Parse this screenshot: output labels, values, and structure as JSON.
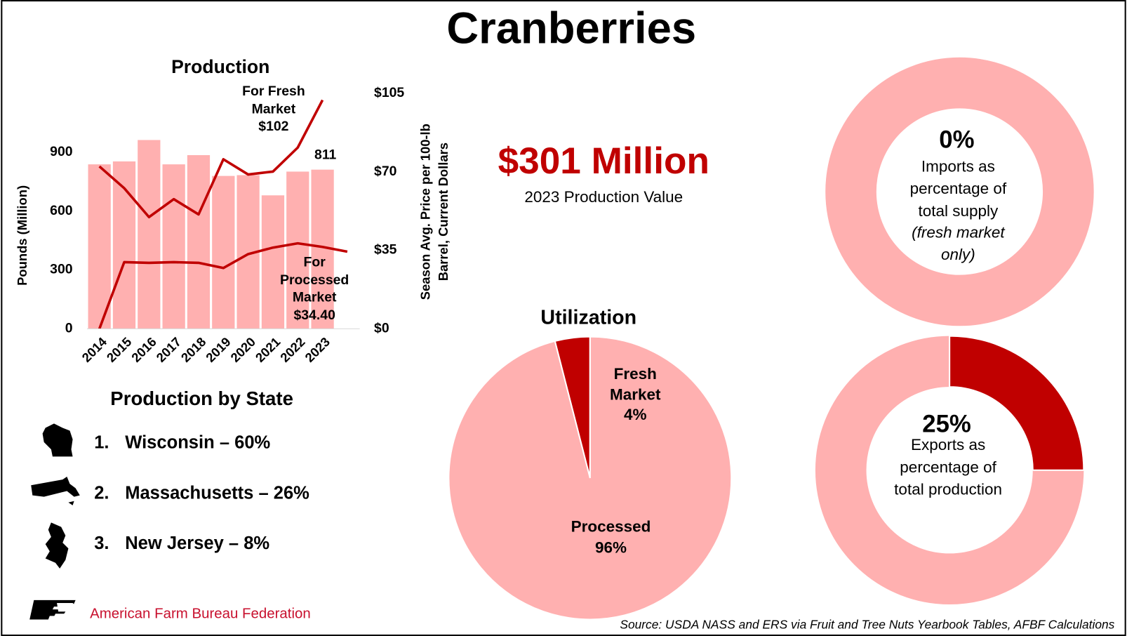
{
  "title": "Cranberries",
  "highlight": {
    "value": "$301 Million",
    "label": "2023 Production Value"
  },
  "states": {
    "title": "Production by State",
    "items": [
      {
        "rank": "1.",
        "text": "Wisconsin – 60%"
      },
      {
        "rank": "2.",
        "text": "Massachusetts – 26%"
      },
      {
        "rank": "3.",
        "text": "New Jersey – 8%"
      }
    ]
  },
  "logo": "American Farm Bureau Federation",
  "source": "Source: USDA NASS and ERS via Fruit and Tree Nuts Yearbook Tables, AFBF Calculations",
  "chart_data": [
    {
      "type": "bar_line",
      "title": "Production",
      "categories": [
        "2014",
        "2015",
        "2016",
        "2017",
        "2018",
        "2019",
        "2020",
        "2021",
        "2022",
        "2023",
        null
      ],
      "ylabel": "Pounds (Million)",
      "y2label": [
        "Season Avg. Price per 100-lb",
        "Barrel, Current Dollars"
      ],
      "ylim": [
        0,
        1200
      ],
      "yticks": [
        0,
        300,
        600,
        900
      ],
      "y2lim": [
        0,
        105
      ],
      "y2ticks": [
        {
          "value": 0,
          "label": "$0"
        },
        {
          "value": 35,
          "label": "$35"
        },
        {
          "value": 70,
          "label": "$70"
        },
        {
          "value": 105,
          "label": "$105"
        }
      ],
      "series": [
        {
          "type": "bar",
          "color": "#ffb0b0",
          "values": [
            838,
            853,
            962,
            838,
            885,
            779,
            783,
            680,
            801,
            811,
            null
          ],
          "value_labels": [
            null,
            null,
            null,
            null,
            null,
            null,
            null,
            null,
            null,
            "811",
            null
          ]
        },
        {
          "type": "line",
          "name": "For Fresh Market",
          "axis": "y2",
          "color": "#c00000",
          "values": [
            72.4,
            62.7,
            49.8,
            57.8,
            51,
            75.6,
            68.8,
            70.1,
            80.8,
            102,
            null
          ],
          "value_labels": [
            null,
            null,
            null,
            null,
            null,
            null,
            null,
            null,
            null,
            "$102",
            null
          ]
        },
        {
          "type": "line",
          "name": "For Processed Market",
          "axis": "y2",
          "color": "#c00000",
          "values": [
            0,
            29.7,
            29.4,
            29.7,
            29.4,
            27.1,
            33.3,
            36.2,
            38.1,
            36.5,
            34.4
          ],
          "value_labels": [
            null,
            null,
            null,
            null,
            null,
            null,
            null,
            null,
            null,
            null,
            "$34.40"
          ]
        }
      ]
    },
    {
      "type": "pie",
      "title": "Utilization",
      "categories": [
        "Fresh Market",
        "Processed"
      ],
      "values": [
        4,
        96
      ],
      "value_labels": [
        "4%",
        "96%"
      ],
      "colors": [
        "#c00000",
        "#ffb0b0"
      ]
    },
    {
      "type": "donut",
      "value": 0,
      "value_label": "0%",
      "label": "Imports as percentage of total supply",
      "note": "(fresh market only)",
      "color": "#c00000",
      "rest_color": "#ffb0b0"
    },
    {
      "type": "donut",
      "value": 25,
      "value_label": "25%",
      "label": "Exports as percentage of total production",
      "color": "#c00000",
      "rest_color": "#ffb0b0"
    }
  ]
}
